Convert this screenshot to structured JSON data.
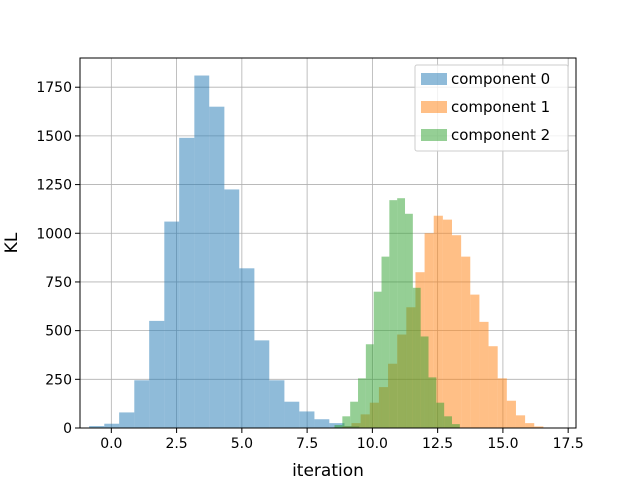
{
  "chart_data": {
    "type": "bar",
    "title": "",
    "xlabel": "iteration",
    "ylabel": "KL",
    "xlim": [
      -1.2,
      17.8
    ],
    "ylim": [
      0,
      1900
    ],
    "xticks": [
      0.0,
      2.5,
      5.0,
      7.5,
      10.0,
      12.5,
      15.0,
      17.5
    ],
    "xtick_labels": [
      "0.0",
      "2.5",
      "5.0",
      "7.5",
      "10.0",
      "12.5",
      "15.0",
      "17.5"
    ],
    "yticks": [
      0,
      250,
      500,
      750,
      1000,
      1250,
      1500,
      1750
    ],
    "ytick_labels": [
      "0",
      "250",
      "500",
      "750",
      "1000",
      "1250",
      "1500",
      "1750"
    ],
    "grid": true,
    "legend_position": "top-right",
    "series": [
      {
        "name": "component 0",
        "color": "#1f77b4",
        "bin_edges": [
          -0.85,
          -0.27,
          0.3,
          0.88,
          1.45,
          2.03,
          2.6,
          3.18,
          3.75,
          4.33,
          4.9,
          5.48,
          6.05,
          6.63,
          7.2,
          7.78,
          8.35,
          8.93,
          9.5
        ],
        "counts": [
          10,
          22,
          80,
          245,
          550,
          1060,
          1490,
          1810,
          1650,
          1225,
          820,
          450,
          245,
          135,
          85,
          45,
          25,
          10
        ]
      },
      {
        "name": "component 1",
        "color": "#ff7f0e",
        "bin_edges": [
          8.5,
          8.85,
          9.2,
          9.55,
          9.9,
          10.25,
          10.6,
          10.95,
          11.3,
          11.65,
          12.0,
          12.35,
          12.7,
          13.05,
          13.4,
          13.75,
          14.1,
          14.45,
          14.8,
          15.15,
          15.5,
          15.85,
          16.2,
          16.55
        ],
        "counts": [
          3,
          8,
          25,
          70,
          130,
          210,
          330,
          480,
          620,
          800,
          1000,
          1090,
          1070,
          990,
          880,
          685,
          545,
          420,
          255,
          140,
          65,
          25,
          8
        ]
      },
      {
        "name": "component 2",
        "color": "#2ca02c",
        "bin_edges": [
          8.55,
          8.85,
          9.15,
          9.45,
          9.75,
          10.05,
          10.35,
          10.65,
          10.95,
          11.25,
          11.55,
          11.85,
          12.15,
          12.45,
          12.75,
          13.05,
          13.35
        ],
        "counts": [
          15,
          60,
          135,
          255,
          430,
          700,
          880,
          1170,
          1180,
          1100,
          720,
          470,
          260,
          130,
          60,
          20
        ]
      }
    ]
  }
}
